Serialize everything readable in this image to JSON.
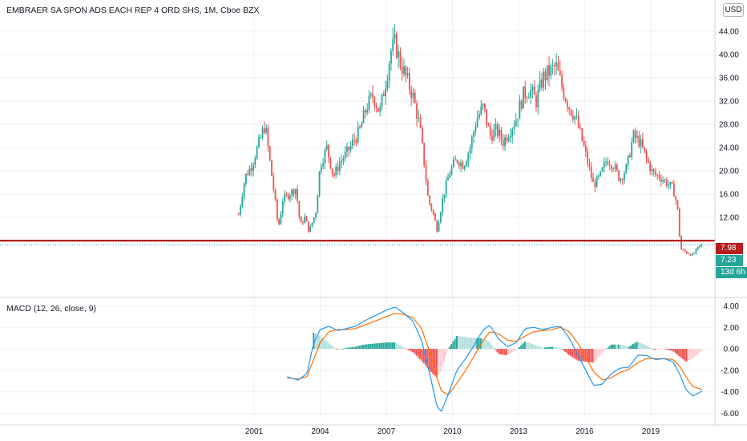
{
  "header": {
    "title": "EMBRAER SA SPON ADS EACH REP 4 ORD SHS, 1M, Cboe BZX",
    "currency": "USD"
  },
  "macd_pane": {
    "label": "MACD (12, 26, close, 9)"
  },
  "price_tags": {
    "line_level": "7.98",
    "last_price": "7.23",
    "countdown": "13d 6h"
  },
  "colors": {
    "up": "#26a69a",
    "down": "#ef5350",
    "hline": "#b71c1c",
    "macd_line": "#2196f3",
    "signal_line": "#ff6d00",
    "grid": "#eef0f3"
  },
  "chart_data": [
    {
      "type": "candlestick",
      "title": "EMBRAER SA SPON ADS EACH REP 4 ORD SHS, 1M, Cboe BZX",
      "interval": "1M",
      "x_ticks": [
        "2001",
        "2004",
        "2007",
        "2010",
        "2013",
        "2016",
        "2019"
      ],
      "y_ticks": [
        "44.00",
        "40.00",
        "36.00",
        "32.00",
        "28.00",
        "24.00",
        "20.00",
        "16.00",
        "12.00"
      ],
      "ylim": [
        4,
        45
      ],
      "horizontal_line": 7.98,
      "last_price": 7.23,
      "close_path": [
        [
          2000.3,
          12.5
        ],
        [
          2000.6,
          19.0
        ],
        [
          2000.9,
          21.0
        ],
        [
          2001.2,
          24.5
        ],
        [
          2001.5,
          28.0
        ],
        [
          2001.7,
          22.0
        ],
        [
          2001.95,
          15.0
        ],
        [
          2002.1,
          10.0
        ],
        [
          2002.3,
          15.0
        ],
        [
          2002.6,
          16.0
        ],
        [
          2002.9,
          17.0
        ],
        [
          2003.1,
          10.5
        ],
        [
          2003.3,
          12.0
        ],
        [
          2003.5,
          9.5
        ],
        [
          2003.8,
          13.0
        ],
        [
          2004.0,
          21.0
        ],
        [
          2004.3,
          24.0
        ],
        [
          2004.6,
          19.0
        ],
        [
          2004.9,
          21.5
        ],
        [
          2005.2,
          23.0
        ],
        [
          2005.5,
          25.0
        ],
        [
          2005.8,
          27.0
        ],
        [
          2006.1,
          31.0
        ],
        [
          2006.4,
          33.0
        ],
        [
          2006.7,
          30.0
        ],
        [
          2007.0,
          36.0
        ],
        [
          2007.2,
          40.5
        ],
        [
          2007.4,
          42.0
        ],
        [
          2007.6,
          39.0
        ],
        [
          2007.9,
          36.0
        ],
        [
          2008.2,
          33.0
        ],
        [
          2008.5,
          28.0
        ],
        [
          2008.7,
          22.0
        ],
        [
          2008.9,
          15.0
        ],
        [
          2009.1,
          13.0
        ],
        [
          2009.3,
          10.0
        ],
        [
          2009.6,
          16.0
        ],
        [
          2009.9,
          20.0
        ],
        [
          2010.2,
          22.0
        ],
        [
          2010.5,
          21.0
        ],
        [
          2010.8,
          24.0
        ],
        [
          2011.1,
          29.0
        ],
        [
          2011.4,
          31.0
        ],
        [
          2011.7,
          26.0
        ],
        [
          2012.0,
          27.0
        ],
        [
          2012.3,
          25.0
        ],
        [
          2012.6,
          27.0
        ],
        [
          2012.9,
          29.0
        ],
        [
          2013.2,
          33.0
        ],
        [
          2013.5,
          34.0
        ],
        [
          2013.8,
          32.0
        ],
        [
          2014.1,
          36.0
        ],
        [
          2014.4,
          37.0
        ],
        [
          2014.7,
          38.0
        ],
        [
          2015.0,
          34.0
        ],
        [
          2015.3,
          31.0
        ],
        [
          2015.6,
          29.0
        ],
        [
          2015.9,
          25.0
        ],
        [
          2016.1,
          22.0
        ],
        [
          2016.4,
          17.5
        ],
        [
          2016.7,
          19.0
        ],
        [
          2017.0,
          22.0
        ],
        [
          2017.3,
          21.0
        ],
        [
          2017.6,
          18.5
        ],
        [
          2017.9,
          20.5
        ],
        [
          2018.2,
          26.0
        ],
        [
          2018.5,
          25.0
        ],
        [
          2018.8,
          22.0
        ],
        [
          2019.1,
          19.5
        ],
        [
          2019.4,
          19.0
        ],
        [
          2019.7,
          18.0
        ],
        [
          2020.0,
          17.0
        ],
        [
          2020.2,
          14.0
        ],
        [
          2020.35,
          6.5
        ],
        [
          2020.6,
          6.0
        ],
        [
          2020.9,
          5.5
        ],
        [
          2021.2,
          7.0
        ],
        [
          2021.35,
          7.23
        ]
      ]
    },
    {
      "type": "macd",
      "title": "MACD (12, 26, close, 9)",
      "y_ticks": [
        "4.00",
        "2.00",
        "0.00",
        "-2.00",
        "-4.00",
        "-6.00"
      ],
      "ylim": [
        -6.5,
        4.5
      ],
      "macd": [
        [
          2002.5,
          -2.6
        ],
        [
          2003.0,
          -2.9
        ],
        [
          2003.4,
          -2.3
        ],
        [
          2003.7,
          0.5
        ],
        [
          2004.0,
          1.8
        ],
        [
          2004.4,
          2.1
        ],
        [
          2004.8,
          1.7
        ],
        [
          2005.2,
          1.9
        ],
        [
          2005.6,
          2.1
        ],
        [
          2006.0,
          2.6
        ],
        [
          2006.5,
          3.1
        ],
        [
          2007.0,
          3.6
        ],
        [
          2007.4,
          3.9
        ],
        [
          2007.8,
          3.3
        ],
        [
          2008.2,
          2.6
        ],
        [
          2008.6,
          0.8
        ],
        [
          2009.0,
          -2.6
        ],
        [
          2009.3,
          -5.4
        ],
        [
          2009.5,
          -5.8
        ],
        [
          2009.8,
          -4.3
        ],
        [
          2010.2,
          -2.0
        ],
        [
          2010.6,
          -0.9
        ],
        [
          2011.0,
          0.4
        ],
        [
          2011.4,
          1.8
        ],
        [
          2011.7,
          2.2
        ],
        [
          2012.1,
          0.9
        ],
        [
          2012.5,
          0.2
        ],
        [
          2012.9,
          0.6
        ],
        [
          2013.3,
          1.9
        ],
        [
          2013.7,
          2.0
        ],
        [
          2014.1,
          1.8
        ],
        [
          2014.5,
          2.0
        ],
        [
          2014.9,
          2.1
        ],
        [
          2015.3,
          1.0
        ],
        [
          2015.7,
          -0.6
        ],
        [
          2016.1,
          -2.2
        ],
        [
          2016.4,
          -3.4
        ],
        [
          2016.8,
          -3.3
        ],
        [
          2017.2,
          -2.3
        ],
        [
          2017.6,
          -1.8
        ],
        [
          2018.0,
          -1.7
        ],
        [
          2018.4,
          -0.6
        ],
        [
          2018.8,
          -0.6
        ],
        [
          2019.2,
          -1.0
        ],
        [
          2019.6,
          -0.9
        ],
        [
          2020.0,
          -1.2
        ],
        [
          2020.3,
          -2.3
        ],
        [
          2020.6,
          -3.8
        ],
        [
          2020.9,
          -4.4
        ],
        [
          2021.35,
          -3.9
        ]
      ],
      "signal": [
        [
          2002.5,
          -2.7
        ],
        [
          2003.0,
          -2.8
        ],
        [
          2003.4,
          -2.6
        ],
        [
          2003.7,
          -1.0
        ],
        [
          2004.0,
          0.6
        ],
        [
          2004.4,
          1.6
        ],
        [
          2004.8,
          1.8
        ],
        [
          2005.2,
          1.8
        ],
        [
          2005.6,
          1.9
        ],
        [
          2006.0,
          2.2
        ],
        [
          2006.5,
          2.6
        ],
        [
          2007.0,
          3.0
        ],
        [
          2007.4,
          3.3
        ],
        [
          2007.8,
          3.2
        ],
        [
          2008.2,
          2.9
        ],
        [
          2008.6,
          1.9
        ],
        [
          2009.0,
          -0.5
        ],
        [
          2009.3,
          -2.7
        ],
        [
          2009.5,
          -3.9
        ],
        [
          2009.8,
          -4.3
        ],
        [
          2010.2,
          -3.2
        ],
        [
          2010.6,
          -2.0
        ],
        [
          2011.0,
          -0.6
        ],
        [
          2011.4,
          0.8
        ],
        [
          2011.7,
          1.6
        ],
        [
          2012.1,
          1.4
        ],
        [
          2012.5,
          0.8
        ],
        [
          2012.9,
          0.7
        ],
        [
          2013.3,
          1.2
        ],
        [
          2013.7,
          1.6
        ],
        [
          2014.1,
          1.7
        ],
        [
          2014.5,
          1.8
        ],
        [
          2014.9,
          2.0
        ],
        [
          2015.3,
          1.6
        ],
        [
          2015.7,
          0.5
        ],
        [
          2016.1,
          -1.0
        ],
        [
          2016.4,
          -2.1
        ],
        [
          2016.8,
          -2.9
        ],
        [
          2017.2,
          -2.7
        ],
        [
          2017.6,
          -2.2
        ],
        [
          2018.0,
          -1.9
        ],
        [
          2018.4,
          -1.3
        ],
        [
          2018.8,
          -0.9
        ],
        [
          2019.2,
          -0.9
        ],
        [
          2019.6,
          -0.9
        ],
        [
          2020.0,
          -1.0
        ],
        [
          2020.3,
          -1.6
        ],
        [
          2020.6,
          -2.6
        ],
        [
          2020.9,
          -3.5
        ],
        [
          2021.35,
          -3.8
        ]
      ]
    }
  ]
}
